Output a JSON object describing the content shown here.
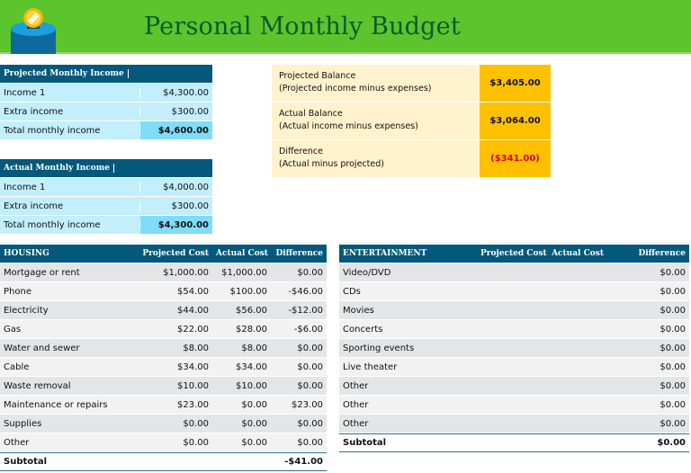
{
  "header": {
    "title": "Personal Monthly Budget",
    "icon": "coin-bank-icon",
    "color": "#5cc42d"
  },
  "projected_income": {
    "title": "Projected Monthly Income",
    "rows": [
      {
        "label": "Income 1",
        "value": "$4,300.00"
      },
      {
        "label": "Extra income",
        "value": "$300.00"
      },
      {
        "label": "Total monthly income",
        "value": "$4,600.00"
      }
    ]
  },
  "actual_income": {
    "title": "Actual Monthly Income",
    "rows": [
      {
        "label": "Income 1",
        "value": "$4,000.00"
      },
      {
        "label": "Extra income",
        "value": "$300.00"
      },
      {
        "label": "Total monthly income",
        "value": "$4,300.00"
      }
    ]
  },
  "balance": [
    {
      "label": "Projected Balance",
      "sub": "(Projected income minus expenses)",
      "value": "$3,405.00"
    },
    {
      "label": "Actual Balance",
      "sub": "(Actual income minus expenses)",
      "value": "$3,064.00"
    },
    {
      "label": "Difference",
      "sub": "(Actual minus projected)",
      "value": "($341.00)",
      "color": "#e00000"
    }
  ],
  "housing": {
    "headers": [
      "HOUSING",
      "Projected Cost",
      "Actual Cost",
      "Difference"
    ],
    "rows": [
      [
        "Mortgage or rent",
        "$1,000.00",
        "$1,000.00",
        "$0.00"
      ],
      [
        "Phone",
        "$54.00",
        "$100.00",
        "-$46.00"
      ],
      [
        "Electricity",
        "$44.00",
        "$56.00",
        "-$12.00"
      ],
      [
        "Gas",
        "$22.00",
        "$28.00",
        "-$6.00"
      ],
      [
        "Water and sewer",
        "$8.00",
        "$8.00",
        "$0.00"
      ],
      [
        "Cable",
        "$34.00",
        "$34.00",
        "$0.00"
      ],
      [
        "Waste removal",
        "$10.00",
        "$10.00",
        "$0.00"
      ],
      [
        "Maintenance or repairs",
        "$23.00",
        "$0.00",
        "$23.00"
      ],
      [
        "Supplies",
        "$0.00",
        "$0.00",
        "$0.00"
      ],
      [
        "Other",
        "$0.00",
        "$0.00",
        "$0.00"
      ]
    ],
    "subtotal": [
      "Subtotal",
      "",
      "",
      "-$41.00"
    ]
  },
  "entertainment": {
    "headers": [
      "ENTERTAINMENT",
      "Projected Cost",
      "Actual Cost",
      "Difference"
    ],
    "rows": [
      [
        "Video/DVD",
        "",
        "",
        "$0.00"
      ],
      [
        "CDs",
        "",
        "",
        "$0.00"
      ],
      [
        "Movies",
        "",
        "",
        "$0.00"
      ],
      [
        "Concerts",
        "",
        "",
        "$0.00"
      ],
      [
        "Sporting events",
        "",
        "",
        "$0.00"
      ],
      [
        "Live theater",
        "",
        "",
        "$0.00"
      ],
      [
        "Other",
        "",
        "",
        "$0.00"
      ],
      [
        "Other",
        "",
        "",
        "$0.00"
      ],
      [
        "Other",
        "",
        "",
        "$0.00"
      ]
    ],
    "subtotal": [
      "Subtotal",
      "",
      "",
      "$0.00"
    ]
  }
}
